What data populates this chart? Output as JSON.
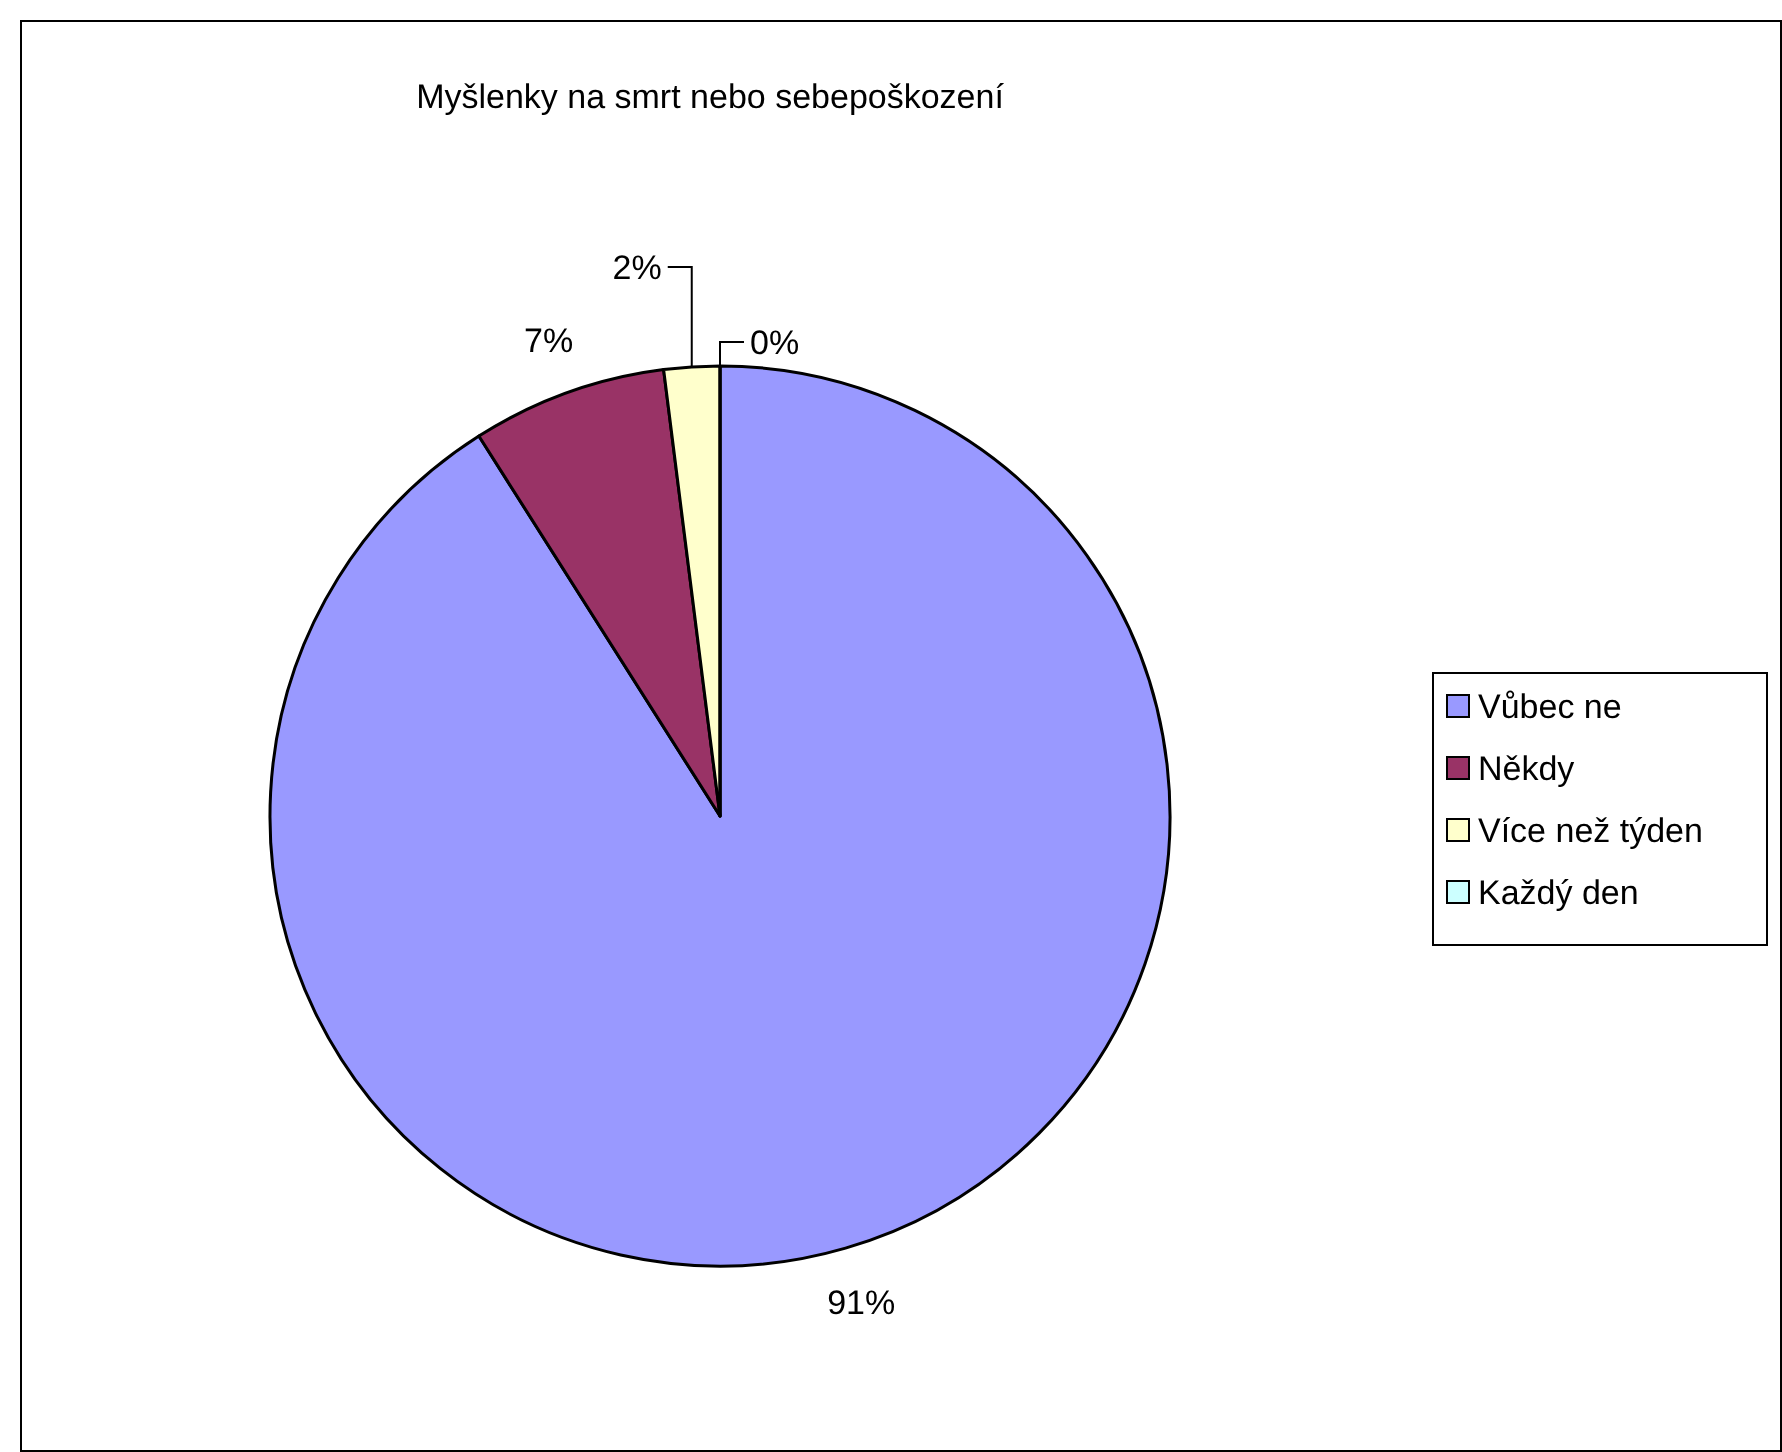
{
  "chart_data": {
    "type": "pie",
    "title": "Myšlenky na smrt nebo sebepoškození",
    "categories": [
      "Vůbec ne",
      "Někdy",
      "Více než týden",
      "Každý den"
    ],
    "values": [
      91,
      7,
      2,
      0
    ],
    "colors": [
      "#9999ff",
      "#993366",
      "#ffffcc",
      "#ccffff"
    ],
    "value_labels": [
      "91%",
      "7%",
      "2%",
      "0%"
    ],
    "legend": "right"
  }
}
